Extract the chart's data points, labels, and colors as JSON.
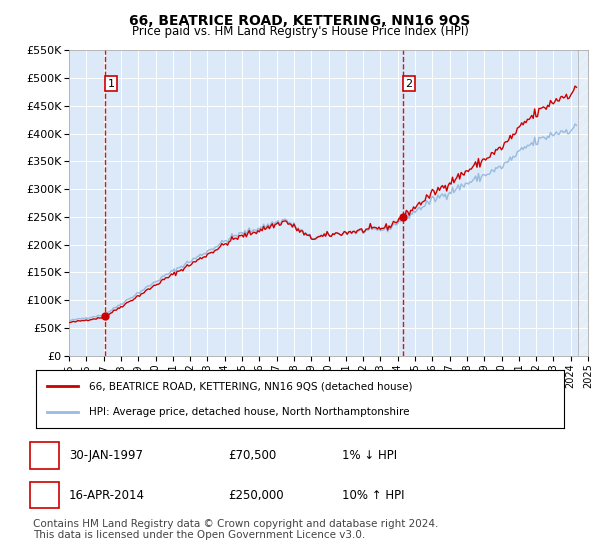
{
  "title": "66, BEATRICE ROAD, KETTERING, NN16 9QS",
  "subtitle": "Price paid vs. HM Land Registry's House Price Index (HPI)",
  "property_label": "66, BEATRICE ROAD, KETTERING, NN16 9QS (detached house)",
  "hpi_label": "HPI: Average price, detached house, North Northamptonshire",
  "transactions": [
    {
      "num": 1,
      "date_num": 1997.08,
      "price": 70500,
      "label": "30-JAN-1997",
      "price_str": "£70,500",
      "hpi_rel": "1% ↓ HPI"
    },
    {
      "num": 2,
      "date_num": 2014.29,
      "price": 250000,
      "label": "16-APR-2014",
      "price_str": "£250,000",
      "hpi_rel": "10% ↑ HPI"
    }
  ],
  "ylim": [
    0,
    550000
  ],
  "xlim": [
    1995,
    2025
  ],
  "yticks": [
    0,
    50000,
    100000,
    150000,
    200000,
    250000,
    300000,
    350000,
    400000,
    450000,
    500000,
    550000
  ],
  "ytick_labels": [
    "£0",
    "£50K",
    "£100K",
    "£150K",
    "£200K",
    "£250K",
    "£300K",
    "£350K",
    "£400K",
    "£450K",
    "£500K",
    "£550K"
  ],
  "xticks": [
    1995,
    1996,
    1997,
    1998,
    1999,
    2000,
    2001,
    2002,
    2003,
    2004,
    2005,
    2006,
    2007,
    2008,
    2009,
    2010,
    2011,
    2012,
    2013,
    2014,
    2015,
    2016,
    2017,
    2018,
    2019,
    2020,
    2021,
    2022,
    2023,
    2024,
    2025
  ],
  "bg_color": "#dce9f8",
  "line_color_property": "#cc0000",
  "line_color_hpi": "#99bbdd",
  "marker_color": "#cc0000",
  "vline_color": "#cc0000",
  "footnote": "Contains HM Land Registry data © Crown copyright and database right 2024.\nThis data is licensed under the Open Government Licence v3.0.",
  "copyright_fontsize": 7.5
}
